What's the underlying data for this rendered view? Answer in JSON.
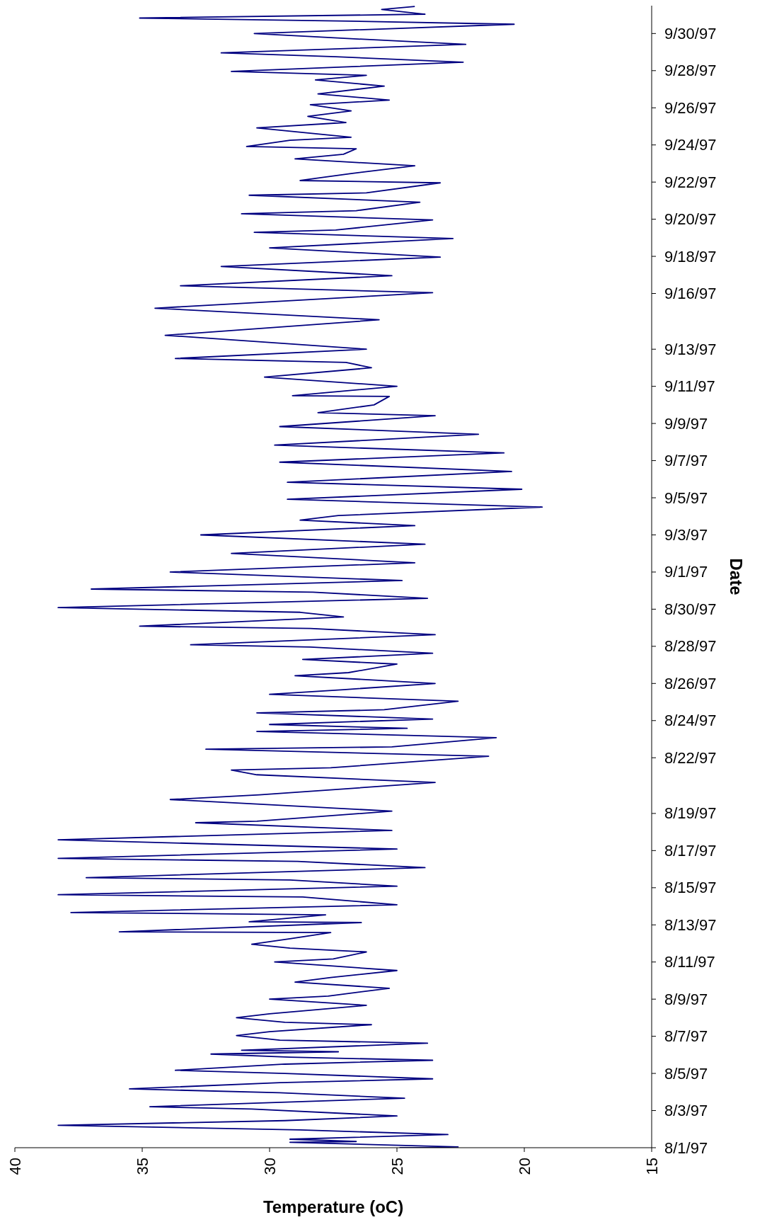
{
  "chart_data": {
    "type": "line",
    "orientation": "horizontal",
    "xlabel": "Temperature (oC)",
    "ylabel": "Date",
    "color": "#000080",
    "xlim": [
      40,
      15
    ],
    "xticks": [
      40,
      35,
      30,
      25,
      20,
      15
    ],
    "ylim": [
      "1997-08-01",
      "1997-10-01T12:00"
    ],
    "yticks": [
      {
        "value": "1997-08-01",
        "label": "8/1/97"
      },
      {
        "value": "1997-08-03",
        "label": "8/3/97"
      },
      {
        "value": "1997-08-05",
        "label": "8/5/97"
      },
      {
        "value": "1997-08-07",
        "label": "8/7/97"
      },
      {
        "value": "1997-08-09",
        "label": "8/9/97"
      },
      {
        "value": "1997-08-11",
        "label": "8/11/97"
      },
      {
        "value": "1997-08-13",
        "label": "8/13/97"
      },
      {
        "value": "1997-08-15",
        "label": "8/15/97"
      },
      {
        "value": "1997-08-17",
        "label": "8/17/97"
      },
      {
        "value": "1997-08-19",
        "label": "8/19/97"
      },
      {
        "value": "1997-08-22",
        "label": "8/22/97"
      },
      {
        "value": "1997-08-24",
        "label": "8/24/97"
      },
      {
        "value": "1997-08-26",
        "label": "8/26/97"
      },
      {
        "value": "1997-08-28",
        "label": "8/28/97"
      },
      {
        "value": "1997-08-30",
        "label": "8/30/97"
      },
      {
        "value": "1997-09-01",
        "label": "9/1/97"
      },
      {
        "value": "1997-09-03",
        "label": "9/3/97"
      },
      {
        "value": "1997-09-05",
        "label": "9/5/97"
      },
      {
        "value": "1997-09-07",
        "label": "9/7/97"
      },
      {
        "value": "1997-09-09",
        "label": "9/9/97"
      },
      {
        "value": "1997-09-11",
        "label": "9/11/97"
      },
      {
        "value": "1997-09-13",
        "label": "9/13/97"
      },
      {
        "value": "1997-09-16",
        "label": "9/16/97"
      },
      {
        "value": "1997-09-18",
        "label": "9/18/97"
      },
      {
        "value": "1997-09-20",
        "label": "9/20/97"
      },
      {
        "value": "1997-09-22",
        "label": "9/22/97"
      },
      {
        "value": "1997-09-24",
        "label": "9/24/97"
      },
      {
        "value": "1997-09-26",
        "label": "9/26/97"
      },
      {
        "value": "1997-09-28",
        "label": "9/28/97"
      },
      {
        "value": "1997-09-30",
        "label": "9/30/97"
      }
    ],
    "x": [
      "1997-08-01T00:00",
      "1997-08-01T01:00",
      "1997-08-01T07:00",
      "1997-08-01T08:00",
      "1997-08-01T11:00",
      "1997-08-01T17:00",
      "1997-08-01T23:00",
      "1997-08-02T05:00",
      "1997-08-02T11:00",
      "1997-08-02T17:00",
      "1997-08-03T02:00",
      "1997-08-03T05:00",
      "1997-08-03T16:00",
      "1997-08-03T23:00",
      "1997-08-04T04:00",
      "1997-08-04T12:00",
      "1997-08-04T17:00",
      "1997-08-05T00:00",
      "1997-08-05T04:00",
      "1997-08-05T12:00",
      "1997-08-05T17:00",
      "1997-08-05T21:00",
      "1997-08-06T01:00",
      "1997-08-06T04:00",
      "1997-08-06T06:00",
      "1997-08-06T15:00",
      "1997-08-06T19:00",
      "1997-08-07T01:00",
      "1997-08-07T06:00",
      "1997-08-07T15:00",
      "1997-08-07T18:00",
      "1997-08-08T00:00",
      "1997-08-08T05:00",
      "1997-08-08T16:00",
      "1997-08-09T00:00",
      "1997-08-09T04:00",
      "1997-08-09T14:00",
      "1997-08-09T22:00",
      "1997-08-10T04:00",
      "1997-08-10T13:00",
      "1997-08-11T00:00",
      "1997-08-11T04:00",
      "1997-08-11T13:00",
      "1997-08-11T18:00",
      "1997-08-11T23:00",
      "1997-08-12T06:00",
      "1997-08-12T14:00",
      "1997-08-12T15:00",
      "1997-08-13T03:00",
      "1997-08-13T04:00",
      "1997-08-13T13:00",
      "1997-08-13T16:00",
      "1997-08-14T02:00",
      "1997-08-14T12:00",
      "1997-08-14T15:00",
      "1997-08-15T02:00",
      "1997-08-15T10:00",
      "1997-08-15T13:00",
      "1997-08-16T02:00",
      "1997-08-16T10:00",
      "1997-08-16T14:00",
      "1997-08-17T02:00",
      "1997-08-17T14:00",
      "1997-08-18T02:00",
      "1997-08-18T12:00",
      "1997-08-18T14:00",
      "1997-08-19T03:00",
      "1997-08-19T18:00",
      "1997-08-20T00:00",
      "1997-08-20T16:00",
      "1997-08-21T02:00",
      "1997-08-21T08:00",
      "1997-08-21T11:00",
      "1997-08-22T02:00",
      "1997-08-22T11:00",
      "1997-08-22T14:00",
      "1997-08-23T02:00",
      "1997-08-23T10:00",
      "1997-08-23T14:00",
      "1997-08-23T19:00",
      "1997-08-24T02:00",
      "1997-08-24T10:00",
      "1997-08-24T14:00",
      "1997-08-25T01:00",
      "1997-08-25T10:00",
      "1997-08-25T16:00",
      "1997-08-26T00:00",
      "1997-08-26T10:00",
      "1997-08-26T14:00",
      "1997-08-27T01:00",
      "1997-08-27T07:00",
      "1997-08-27T15:00",
      "1997-08-27T23:00",
      "1997-08-28T02:00",
      "1997-08-28T15:00",
      "1997-08-28T23:00",
      "1997-08-29T02:00",
      "1997-08-29T14:00",
      "1997-08-29T20:00",
      "1997-08-30T02:00",
      "1997-08-30T14:00",
      "1997-08-30T22:00",
      "1997-08-31T02:00",
      "1997-08-31T13:00",
      "1997-09-01T00:00",
      "1997-09-01T12:00",
      "1997-09-02T00:00",
      "1997-09-02T12:00",
      "1997-09-03T00:00",
      "1997-09-03T12:00",
      "1997-09-03T19:00",
      "1997-09-04T01:00",
      "1997-09-04T12:00",
      "1997-09-04T22:00",
      "1997-09-05T11:00",
      "1997-09-05T20:00",
      "1997-09-06T10:00",
      "1997-09-06T22:00",
      "1997-09-07T10:00",
      "1997-09-07T20:00",
      "1997-09-08T10:00",
      "1997-09-08T20:00",
      "1997-09-09T10:00",
      "1997-09-09T14:00",
      "1997-09-10T00:00",
      "1997-09-10T11:00",
      "1997-09-10T12:00",
      "1997-09-11T00:00",
      "1997-09-11T12:00",
      "1997-09-12T00:00",
      "1997-09-12T07:00",
      "1997-09-12T12:00",
      "1997-09-13T00:00",
      "1997-09-13T18:00",
      "1997-09-14T14:00",
      "1997-09-15T05:00",
      "1997-09-16T01:00",
      "1997-09-16T10:00",
      "1997-09-16T23:00",
      "1997-09-17T11:00",
      "1997-09-17T23:00",
      "1997-09-18T11:00",
      "1997-09-18T23:00",
      "1997-09-19T07:00",
      "1997-09-19T10:00",
      "1997-09-19T23:00",
      "1997-09-20T07:00",
      "1997-09-20T11:00",
      "1997-09-20T22:00",
      "1997-09-21T07:00",
      "1997-09-21T10:00",
      "1997-09-21T23:00",
      "1997-09-22T02:00",
      "1997-09-22T11:00",
      "1997-09-22T21:00",
      "1997-09-23T06:00",
      "1997-09-23T12:00",
      "1997-09-23T19:00",
      "1997-09-23T22:00",
      "1997-09-24T06:00",
      "1997-09-24T10:00",
      "1997-09-24T22:00",
      "1997-09-25T05:00",
      "1997-09-25T13:00",
      "1997-09-25T20:00",
      "1997-09-26T04:00",
      "1997-09-26T10:00",
      "1997-09-26T18:00",
      "1997-09-27T04:00",
      "1997-09-27T12:00",
      "1997-09-27T18:00",
      "1997-09-27T23:00",
      "1997-09-28T11:00",
      "1997-09-28T18:00",
      "1997-09-28T23:00",
      "1997-09-29T10:00",
      "1997-09-29T18:00",
      "1997-09-30T00:00",
      "1997-09-30T12:00",
      "1997-09-30T16:00",
      "1997-09-30T20:00",
      "1997-10-01T01:00",
      "1997-10-01T07:00",
      "1997-10-01T11:00"
    ],
    "values": [
      24.9,
      22.6,
      29.2,
      26.6,
      29.2,
      23.0,
      28.8,
      38.3,
      29.4,
      25.0,
      30.7,
      34.7,
      24.7,
      29.6,
      35.5,
      29.6,
      23.6,
      29.4,
      33.7,
      29.4,
      23.6,
      29.2,
      32.3,
      27.3,
      31.1,
      23.8,
      29.6,
      31.3,
      30.0,
      26.0,
      29.4,
      31.3,
      30.0,
      26.2,
      30.0,
      27.7,
      25.3,
      29.0,
      27.6,
      25.0,
      29.8,
      27.5,
      26.2,
      29.2,
      30.7,
      29.2,
      27.6,
      35.9,
      26.4,
      30.8,
      27.8,
      37.8,
      25.0,
      28.7,
      38.3,
      25.0,
      29.2,
      37.2,
      23.9,
      28.9,
      38.3,
      25.0,
      38.3,
      25.2,
      32.9,
      30.5,
      25.2,
      33.9,
      30.4,
      23.5,
      30.5,
      31.5,
      27.6,
      21.4,
      32.5,
      25.2,
      21.1,
      30.5,
      24.6,
      30.0,
      23.6,
      30.5,
      25.5,
      22.6,
      30.0,
      27.1,
      23.5,
      29.0,
      26.9,
      25.0,
      28.7,
      23.6,
      28.4,
      33.1,
      23.5,
      28.4,
      35.1,
      27.1,
      28.8,
      38.3,
      23.8,
      28.3,
      37.0,
      24.8,
      33.9,
      24.3,
      31.5,
      23.9,
      32.7,
      24.3,
      28.8,
      27.3,
      19.3,
      29.3,
      20.1,
      29.3,
      20.5,
      29.6,
      20.8,
      29.8,
      21.8,
      29.6,
      23.5,
      28.1,
      25.9,
      25.3,
      29.1,
      25.0,
      30.2,
      26.0,
      27.0,
      33.7,
      26.2,
      34.1,
      25.7,
      34.5,
      23.6,
      33.5,
      25.2,
      31.9,
      23.3,
      30.0,
      22.8,
      30.6,
      27.4,
      23.6,
      31.1,
      26.6,
      24.1,
      30.8,
      26.2,
      23.3,
      28.8,
      26.8,
      24.3,
      29.0,
      27.1,
      26.6,
      30.9,
      29.2,
      26.8,
      30.5,
      27.0,
      28.5,
      26.8,
      28.4,
      25.3,
      28.1,
      25.5,
      28.2,
      26.2,
      31.5,
      22.4,
      27.4,
      31.9,
      22.3,
      27.2,
      30.6,
      20.4,
      26.8,
      35.1,
      23.9,
      25.6,
      24.3
    ]
  }
}
